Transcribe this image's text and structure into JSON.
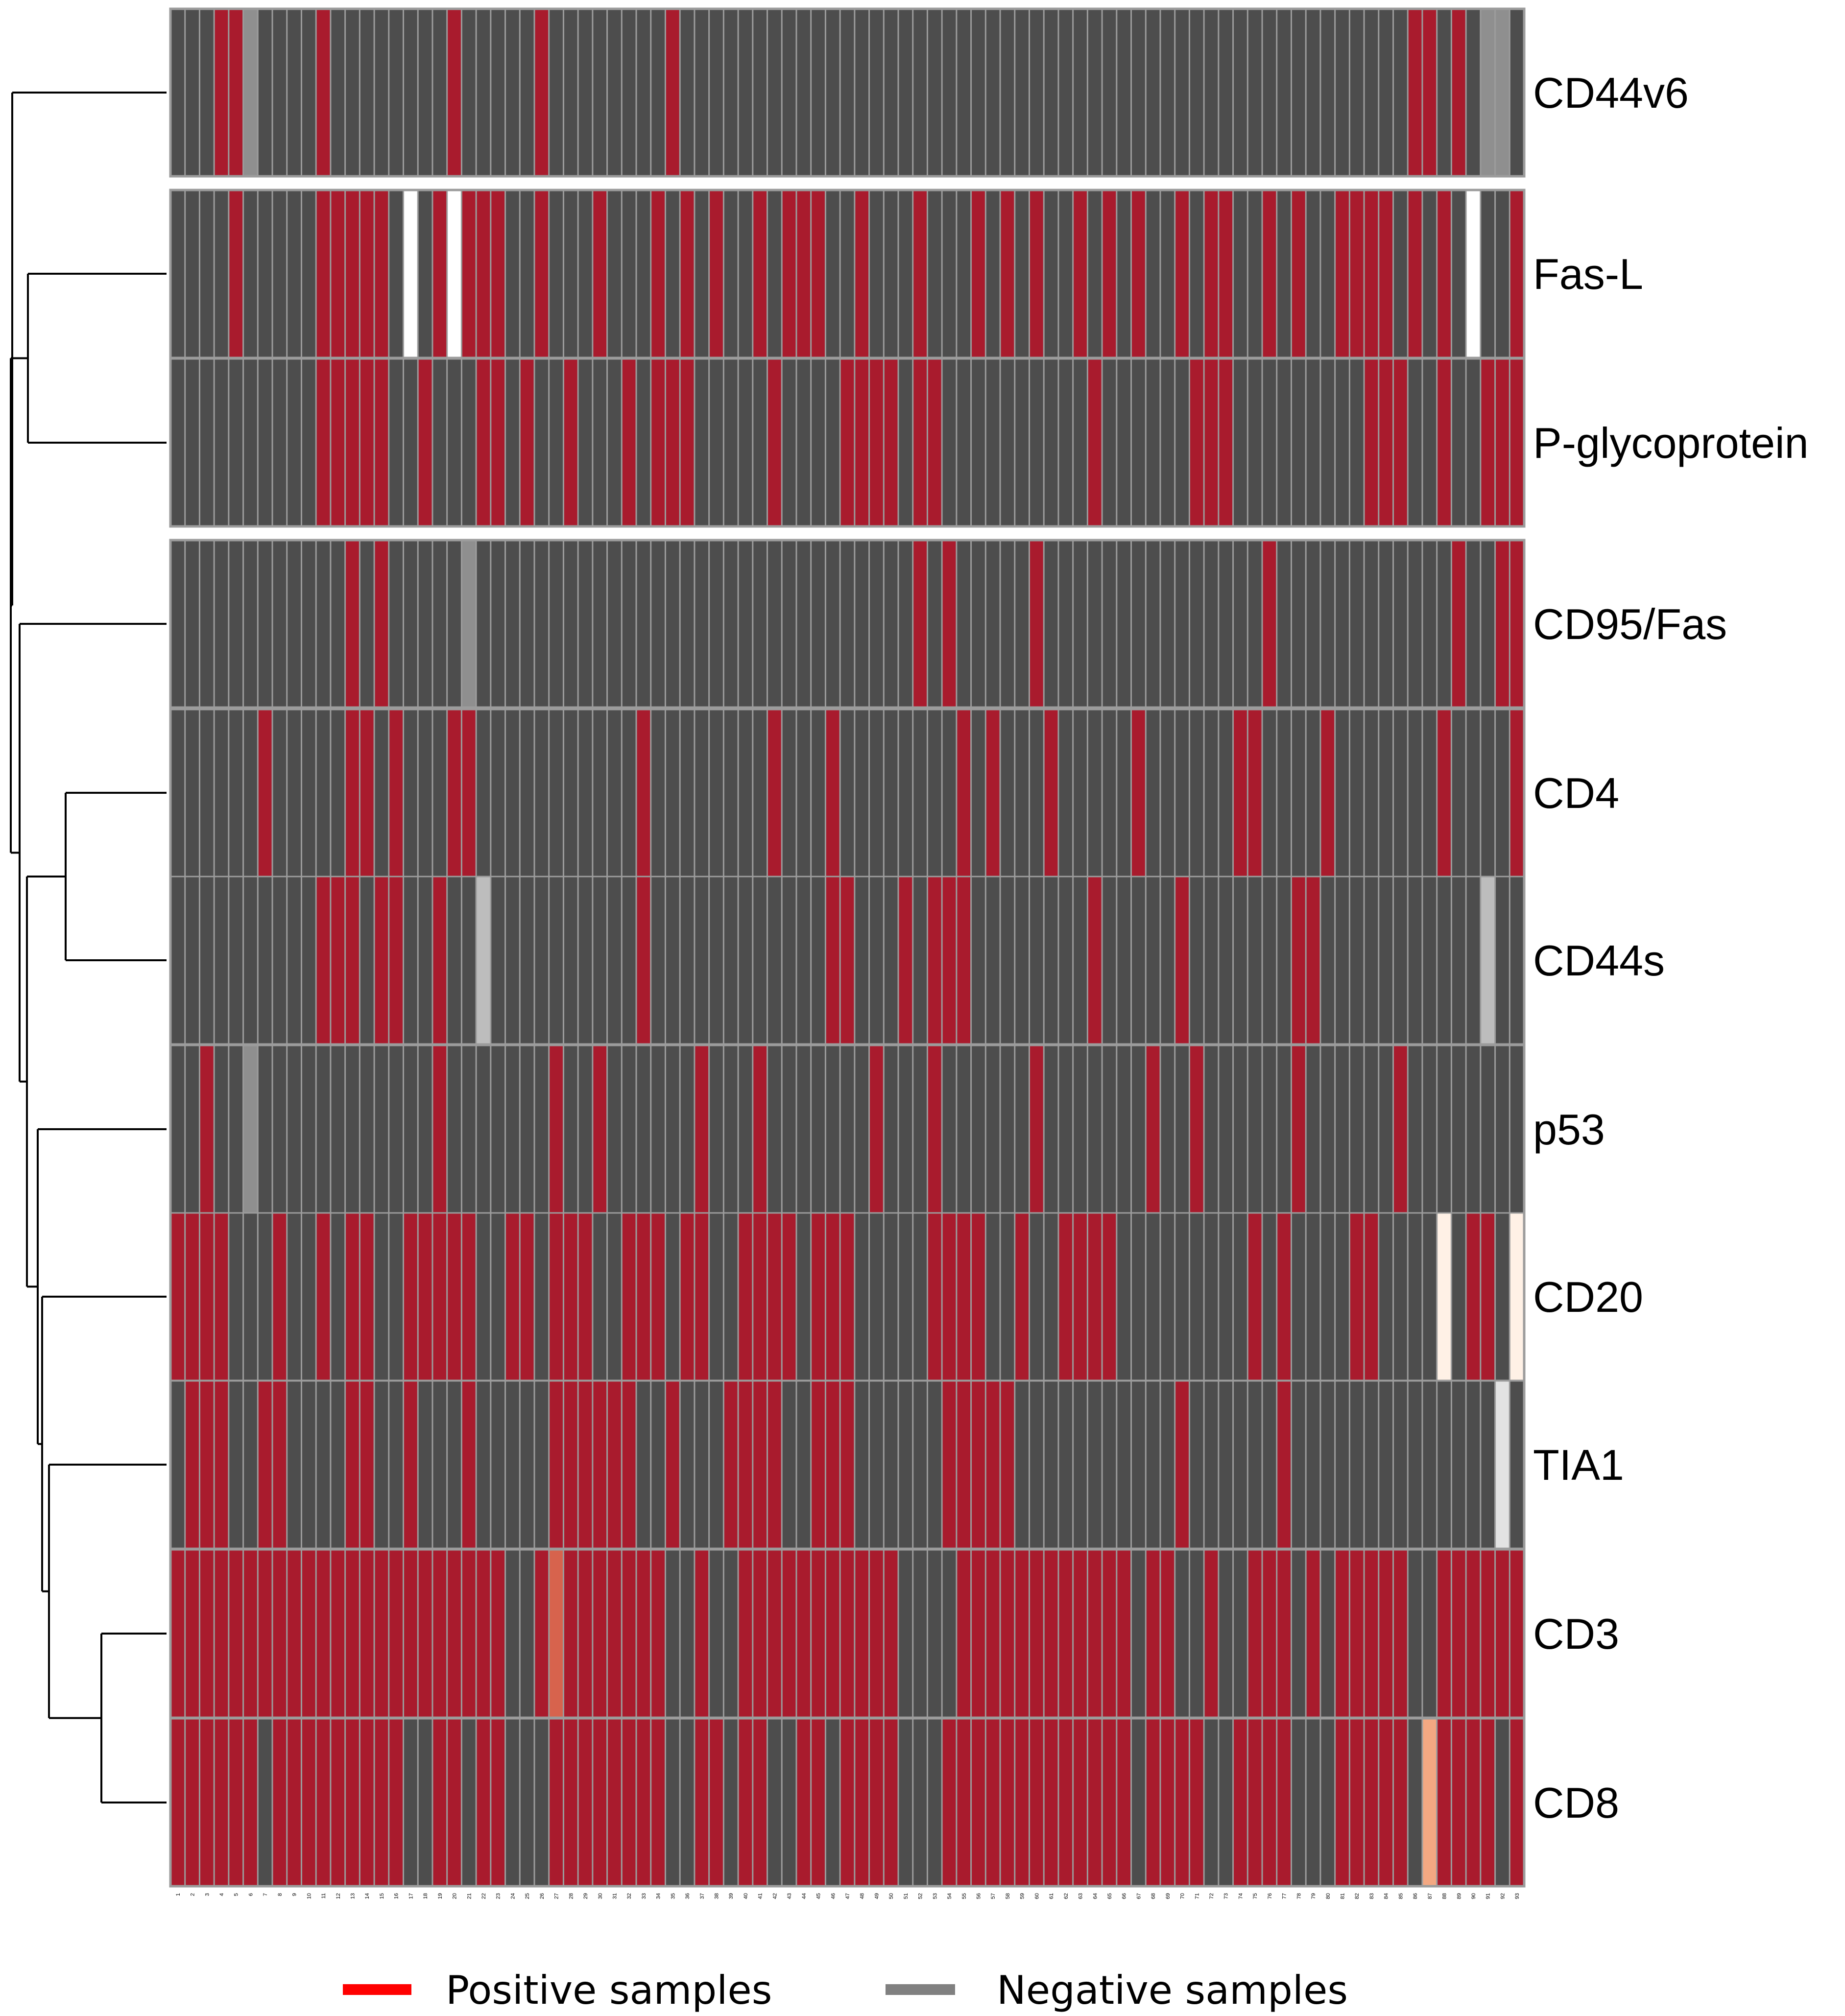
{
  "chart_data": {
    "type": "heatmap",
    "title": "",
    "xlabel": "",
    "ylabel": "",
    "columns": [
      1,
      2,
      3,
      4,
      5,
      6,
      7,
      8,
      9,
      10,
      11,
      12,
      13,
      14,
      15,
      16,
      17,
      18,
      19,
      20,
      21,
      22,
      23,
      24,
      25,
      26,
      27,
      28,
      29,
      30,
      31,
      32,
      33,
      34,
      35,
      36,
      37,
      38,
      39,
      40,
      41,
      42,
      43,
      44,
      45,
      46,
      47,
      48,
      49,
      50,
      51,
      52,
      53,
      54,
      55,
      56,
      57,
      58,
      59,
      60,
      61,
      62,
      63,
      64,
      65,
      66,
      67,
      68,
      69,
      70,
      71,
      72,
      73,
      74,
      75,
      76,
      77,
      78,
      79,
      80,
      81,
      82,
      83,
      84,
      85,
      86,
      87,
      88,
      89,
      90,
      91,
      92,
      93
    ],
    "color_states": {
      "P": "#A91B2D",
      "N": "#4D4D4D",
      "G": "#8F8F8F",
      "W": "#FFFFFF",
      "L": "#BDBDBD",
      "C": "#FFF1E6",
      "S": "#E3E3E3",
      "O": "#D7634D",
      "A": "#F4A882"
    },
    "row_groups": [
      [
        0
      ],
      [
        1,
        2
      ],
      [
        3
      ],
      [
        4,
        5,
        6,
        7,
        8,
        9,
        10
      ]
    ],
    "rows": [
      {
        "label": "CD44v6",
        "states": "NNNPPGNNNNPNNNNNNNNPNNNNNPNNNNNNNNPNNNNNNNNNNNNNNNNNNNNNNNNNNNNNNNNNNNNNNNNNNNNNNNNNNPPNPNGGNN"
      },
      {
        "label": "Fas-L",
        "states": "NNNNPNNNNNPPPPPNWNPWPPPNNPNNNPNNNPNPNPNNPNPPPNNPNNNPNNNPNPNPNNPNPNPNNPNPPNNPNPNNPPPPNPNPNWNNP"
      },
      {
        "label": "P-glycoprotein",
        "states": "NNNNNNNNNNPPPPPNNPNNNPPNPNNPNNNPNPPPNNNNNPNNNNPPPPNPPNNNNNNNNNNPNNNNNNPPPNNNNNNNNNPPPNNPNNPPP"
      },
      {
        "label": "CD95/Fas",
        "states": "NNNNNNNNNNNNPNPNNNNNGNNNNNNNNNNNNNNNNNNNNNNNNNNNNNNPNPNNNNNPNNNNNNNNNNNNNNNPNNNNNNNNNNNNPNNPPG"
      },
      {
        "label": "CD4",
        "states": "NNNNNNPNNNNNPPNPNNNPPNNNNNNNNNNNPNNNNNNNNPNNNPNNNNNNNNPNPNNNPNNNNNPNNNNNNPPNNNNPNNNNNNNPNNNNPNNG"
      },
      {
        "label": "CD44s",
        "states": "NNNNNNNNNNPPPNPPNNPNNLNNNNNNNNNNPNNNNNNNNNNNNPPNNNPNPPPNNNNNNNNPNNNNNPNNNNNNNPPNNNNNNNNNNNLNNN"
      },
      {
        "label": "p53",
        "states": "NNPNNGNNNNNNNNNNNNPNNNNNNNPNNPNNNNNNPNNNPNNNNNNNPNNNPNNNNNNPNNNNNNNPNNPNNNNNNPNNNNNNPNNNNNNNNN"
      },
      {
        "label": "CD20",
        "states": "PPPPNNNPNNPNPPNNPPPPPNNPPNPPPNNPPPNPPNNPPPPNPPPNNNNNPPPPNNPNNPPPPNNNNNNNNNPNPNNNNPPNNNNCNPPNCPNC"
      },
      {
        "label": "TIA1",
        "states": "NPPPNNPPNNNNPPNNPNNNPNNNNNPPPPPPNNPNNNPPPPNNPPPNNNNNNPPPPPNNNNNNNNNNNPNNNNNNPNNNNNNNNNNNNNNSNPS"
      },
      {
        "label": "CD3",
        "states": "PPPPPPPPPPPPPPPPPPPPPPPNNPOPPPPPPPNNPNNPPPPPPPPPPPNNNNPPPPPPPPPPPPNPPNNPNNPPPNPNPPPPPNNPPPPPPPPO"
      },
      {
        "label": "CD8",
        "states": "PPPPPPNPPPPPPPPPNNPPNPPNNNPPPPPPPPNNPPNPPNNPPNPPPPNNNPPPPPPPPPPPPPNPPPPNNPPPPNNNPPPPPNAPPPPNPPNA"
      }
    ],
    "dendrogram_leaf_order": [
      "CD44v6",
      "Fas-L",
      "P-glycoprotein",
      "CD95/Fas",
      "CD4",
      "CD44s",
      "p53",
      "CD20",
      "TIA1",
      "CD3",
      "CD8"
    ],
    "legend": [
      {
        "label": "Positive samples",
        "color": "#FF0000"
      },
      {
        "label": "Negative samples",
        "color": "#808080"
      }
    ]
  }
}
